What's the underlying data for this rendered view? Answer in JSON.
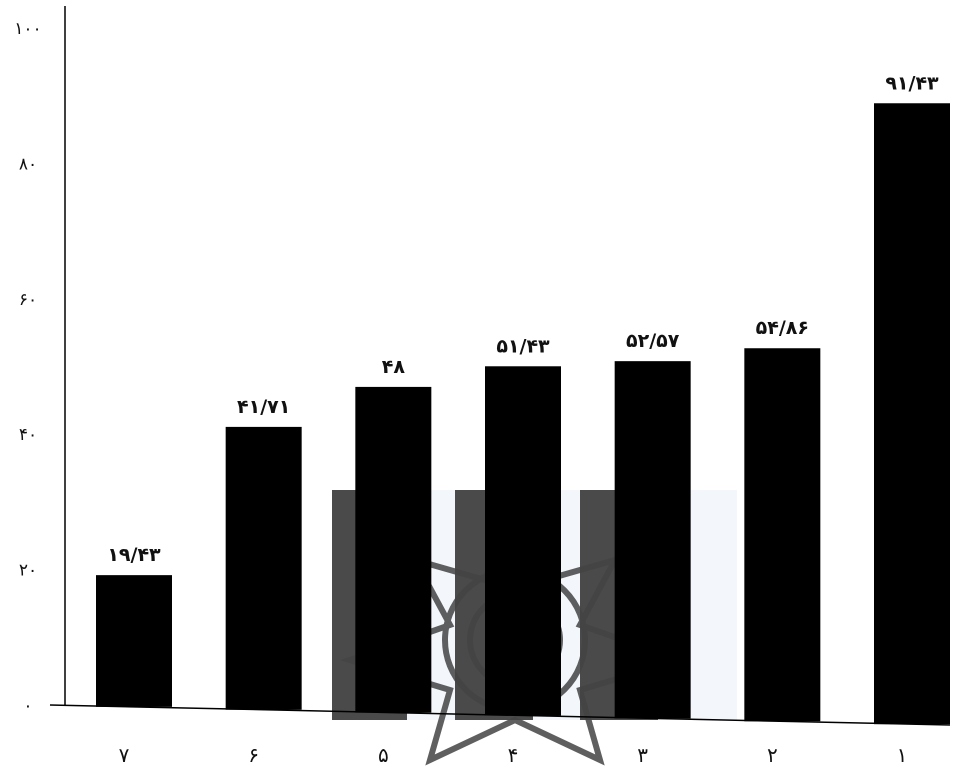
{
  "chart_data": {
    "type": "bar",
    "categories": [
      "۷",
      "۶",
      "۵",
      "۴",
      "۳",
      "۲",
      "۱"
    ],
    "values": [
      19.43,
      41.71,
      48,
      51.43,
      52.57,
      54.86,
      91.43
    ],
    "data_labels": [
      "۱۹/۴۳",
      "۴۱/۷۱",
      "۴۸",
      "۵۱/۴۳",
      "۵۲/۵۷",
      "۵۴/۸۶",
      "۹۱/۴۳"
    ],
    "yticks": [
      0,
      20,
      40,
      60,
      80,
      100
    ],
    "ytick_labels": [
      "۰",
      "۲۰",
      "۴۰",
      "۶۰",
      "۸۰",
      "۱۰۰"
    ],
    "ylim": [
      0,
      100
    ],
    "grid": false,
    "bar_color": "#000000",
    "watermark_color": "#4a4a4a",
    "watermark_bg": "#f3f6fa"
  }
}
